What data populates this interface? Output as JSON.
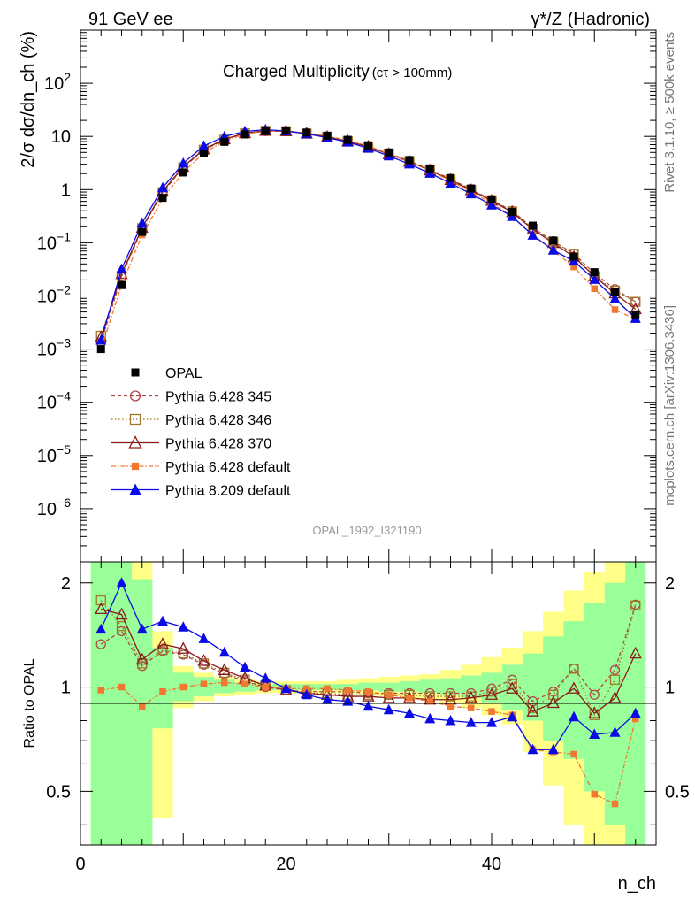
{
  "header": {
    "left": "91 GeV ee",
    "right": "γ*/Z (Hadronic)"
  },
  "side": {
    "top": "Rivet 3.1.10, ≥ 500k events",
    "bottom": "mcplots.cern.ch [arXiv:1306.3436]"
  },
  "chart_data": {
    "type": "line",
    "title": "Charged Multiplicity",
    "subtitle": "(cτ > 100mm)",
    "analysis_label": "OPAL_1992_I321190",
    "ylabel": "2/σ dσ/dn_ch (%)",
    "xlabel": "n_ch",
    "ratio_ylabel": "Ratio to OPAL",
    "xlim": [
      0,
      56
    ],
    "ylim_log": [
      1e-07,
      1000
    ],
    "ratio_ylim": [
      0.35,
      2.3
    ],
    "x_ticks": [
      "0",
      "20",
      "40"
    ],
    "y_ticks": [
      "10^-6",
      "10^-5",
      "10^-4",
      "10^-3",
      "10^-2",
      "10^-1",
      "1",
      "10",
      "10^2"
    ],
    "ratio_ticks": [
      "0.5",
      "1",
      "2"
    ],
    "x": [
      2,
      4,
      6,
      8,
      10,
      12,
      14,
      16,
      18,
      20,
      22,
      24,
      26,
      28,
      30,
      32,
      34,
      36,
      38,
      40,
      42,
      44,
      46,
      48,
      50,
      52,
      54
    ],
    "data": {
      "name": "OPAL",
      "values": [
        0.001,
        0.016,
        0.16,
        0.7,
        2.1,
        4.8,
        7.9,
        10.9,
        12.6,
        12.8,
        11.8,
        10.3,
        8.6,
        6.8,
        5.0,
        3.6,
        2.5,
        1.65,
        1.05,
        0.65,
        0.38,
        0.21,
        0.11,
        0.055,
        0.028,
        0.012,
        0.0045
      ]
    },
    "series": [
      {
        "name": "Pythia 6.428 345",
        "color": "#b04848",
        "dash": "4,3",
        "marker": "open-circle",
        "ratio": [
          1.33,
          1.45,
          1.15,
          1.27,
          1.24,
          1.16,
          1.09,
          1.04,
          1.0,
          0.98,
          0.97,
          0.97,
          0.97,
          0.96,
          0.96,
          0.96,
          0.96,
          0.96,
          0.96,
          0.99,
          1.05,
          0.91,
          0.97,
          1.13,
          0.95,
          1.12,
          1.73
        ]
      },
      {
        "name": "Pythia 6.428 346",
        "color": "#a07828",
        "dash": "1.5,2.5",
        "marker": "open-square",
        "ratio": [
          1.78,
          1.5,
          1.17,
          1.28,
          1.25,
          1.17,
          1.1,
          1.05,
          1.01,
          0.98,
          0.96,
          0.96,
          0.95,
          0.95,
          0.95,
          0.95,
          0.94,
          0.94,
          0.94,
          0.97,
          1.02,
          0.87,
          0.95,
          1.13,
          0.83,
          1.05,
          1.72
        ]
      },
      {
        "name": "Pythia 6.428 370",
        "color": "#8b1a1a",
        "dash": "",
        "marker": "open-triangle",
        "ratio": [
          1.68,
          1.62,
          1.2,
          1.33,
          1.29,
          1.19,
          1.12,
          1.06,
          1.01,
          0.98,
          0.96,
          0.95,
          0.94,
          0.94,
          0.93,
          0.93,
          0.92,
          0.92,
          0.93,
          0.95,
          0.99,
          0.85,
          0.9,
          0.99,
          0.84,
          0.93,
          1.25
        ]
      },
      {
        "name": "Pythia 6.428 default",
        "color": "#f07830",
        "dash": "5,2,1.5,2",
        "marker": "filled-square",
        "ratio": [
          0.98,
          1.0,
          0.88,
          0.97,
          1.0,
          1.02,
          1.03,
          1.02,
          1.0,
          0.99,
          0.99,
          0.99,
          0.98,
          0.97,
          0.95,
          0.93,
          0.91,
          0.88,
          0.87,
          0.85,
          0.83,
          0.66,
          0.65,
          0.64,
          0.49,
          0.46,
          0.81
        ]
      },
      {
        "name": "Pythia 8.209 default",
        "color": "#0a0ae6",
        "dash": "",
        "marker": "filled-triangle",
        "ratio": [
          1.47,
          2.0,
          1.47,
          1.55,
          1.49,
          1.38,
          1.26,
          1.14,
          1.06,
          0.99,
          0.95,
          0.92,
          0.91,
          0.88,
          0.86,
          0.84,
          0.81,
          0.8,
          0.79,
          0.79,
          0.82,
          0.66,
          0.66,
          0.82,
          0.73,
          0.74,
          0.84
        ]
      }
    ],
    "error_bands": {
      "x_edges": [
        1,
        3,
        5,
        7,
        9,
        11,
        13,
        15,
        17,
        19,
        21,
        23,
        25,
        27,
        29,
        31,
        33,
        35,
        37,
        39,
        41,
        43,
        45,
        47,
        49,
        51,
        53,
        55
      ],
      "green": [
        [
          0.35,
          2.3
        ],
        [
          0.35,
          2.3
        ],
        [
          0.35,
          2.05
        ],
        [
          0.76,
          1.3
        ],
        [
          0.91,
          1.1
        ],
        [
          0.94,
          1.07
        ],
        [
          0.96,
          1.05
        ],
        [
          0.97,
          1.03
        ],
        [
          0.98,
          1.02
        ],
        [
          0.98,
          1.02
        ],
        [
          0.98,
          1.02
        ],
        [
          0.98,
          1.02
        ],
        [
          0.98,
          1.02
        ],
        [
          0.98,
          1.03
        ],
        [
          0.97,
          1.03
        ],
        [
          0.97,
          1.04
        ],
        [
          0.96,
          1.05
        ],
        [
          0.95,
          1.06
        ],
        [
          0.93,
          1.08
        ],
        [
          0.9,
          1.1
        ],
        [
          0.86,
          1.16
        ],
        [
          0.8,
          1.25
        ],
        [
          0.7,
          1.4
        ],
        [
          0.62,
          1.55
        ],
        [
          0.5,
          1.75
        ],
        [
          0.4,
          2.0
        ],
        [
          0.35,
          2.3
        ]
      ],
      "yellow": [
        [
          0.35,
          2.3
        ],
        [
          0.35,
          2.3
        ],
        [
          0.35,
          2.3
        ],
        [
          0.42,
          1.45
        ],
        [
          0.87,
          1.15
        ],
        [
          0.91,
          1.1
        ],
        [
          0.94,
          1.07
        ],
        [
          0.95,
          1.05
        ],
        [
          0.96,
          1.04
        ],
        [
          0.96,
          1.04
        ],
        [
          0.96,
          1.04
        ],
        [
          0.96,
          1.04
        ],
        [
          0.96,
          1.05
        ],
        [
          0.95,
          1.06
        ],
        [
          0.94,
          1.07
        ],
        [
          0.93,
          1.08
        ],
        [
          0.92,
          1.09
        ],
        [
          0.9,
          1.12
        ],
        [
          0.87,
          1.16
        ],
        [
          0.83,
          1.22
        ],
        [
          0.78,
          1.3
        ],
        [
          0.65,
          1.45
        ],
        [
          0.52,
          1.65
        ],
        [
          0.4,
          1.9
        ],
        [
          0.35,
          2.15
        ],
        [
          0.35,
          2.3
        ],
        [
          0.35,
          2.3
        ]
      ]
    },
    "legend": {
      "position": "lower-left"
    }
  }
}
